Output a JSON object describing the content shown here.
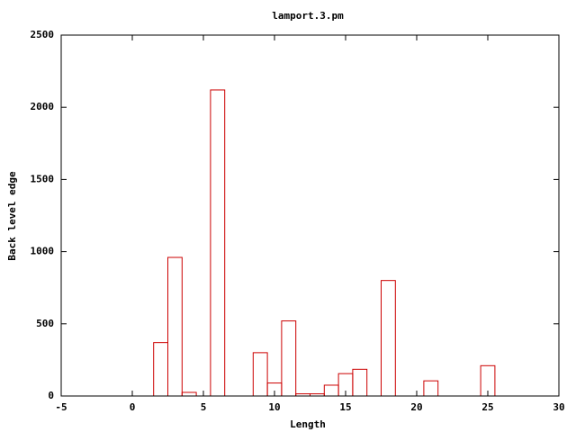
{
  "chart_data": {
    "type": "bar",
    "title": "lamport.3.pm",
    "xlabel": "Length",
    "ylabel": "Back level edge",
    "x": [
      2,
      3,
      4,
      6,
      9,
      10,
      11,
      12,
      13,
      14,
      15,
      16,
      18,
      21,
      25
    ],
    "values": [
      370,
      960,
      25,
      2120,
      300,
      90,
      520,
      15,
      15,
      75,
      155,
      185,
      800,
      105,
      210
    ],
    "color": "#cc0000",
    "xlim": [
      -5,
      30
    ],
    "xticks": [
      -5,
      0,
      5,
      10,
      15,
      20,
      25,
      30
    ],
    "ylim": [
      0,
      2500
    ],
    "yticks": [
      0,
      500,
      1000,
      1500,
      2000,
      2500
    ]
  }
}
